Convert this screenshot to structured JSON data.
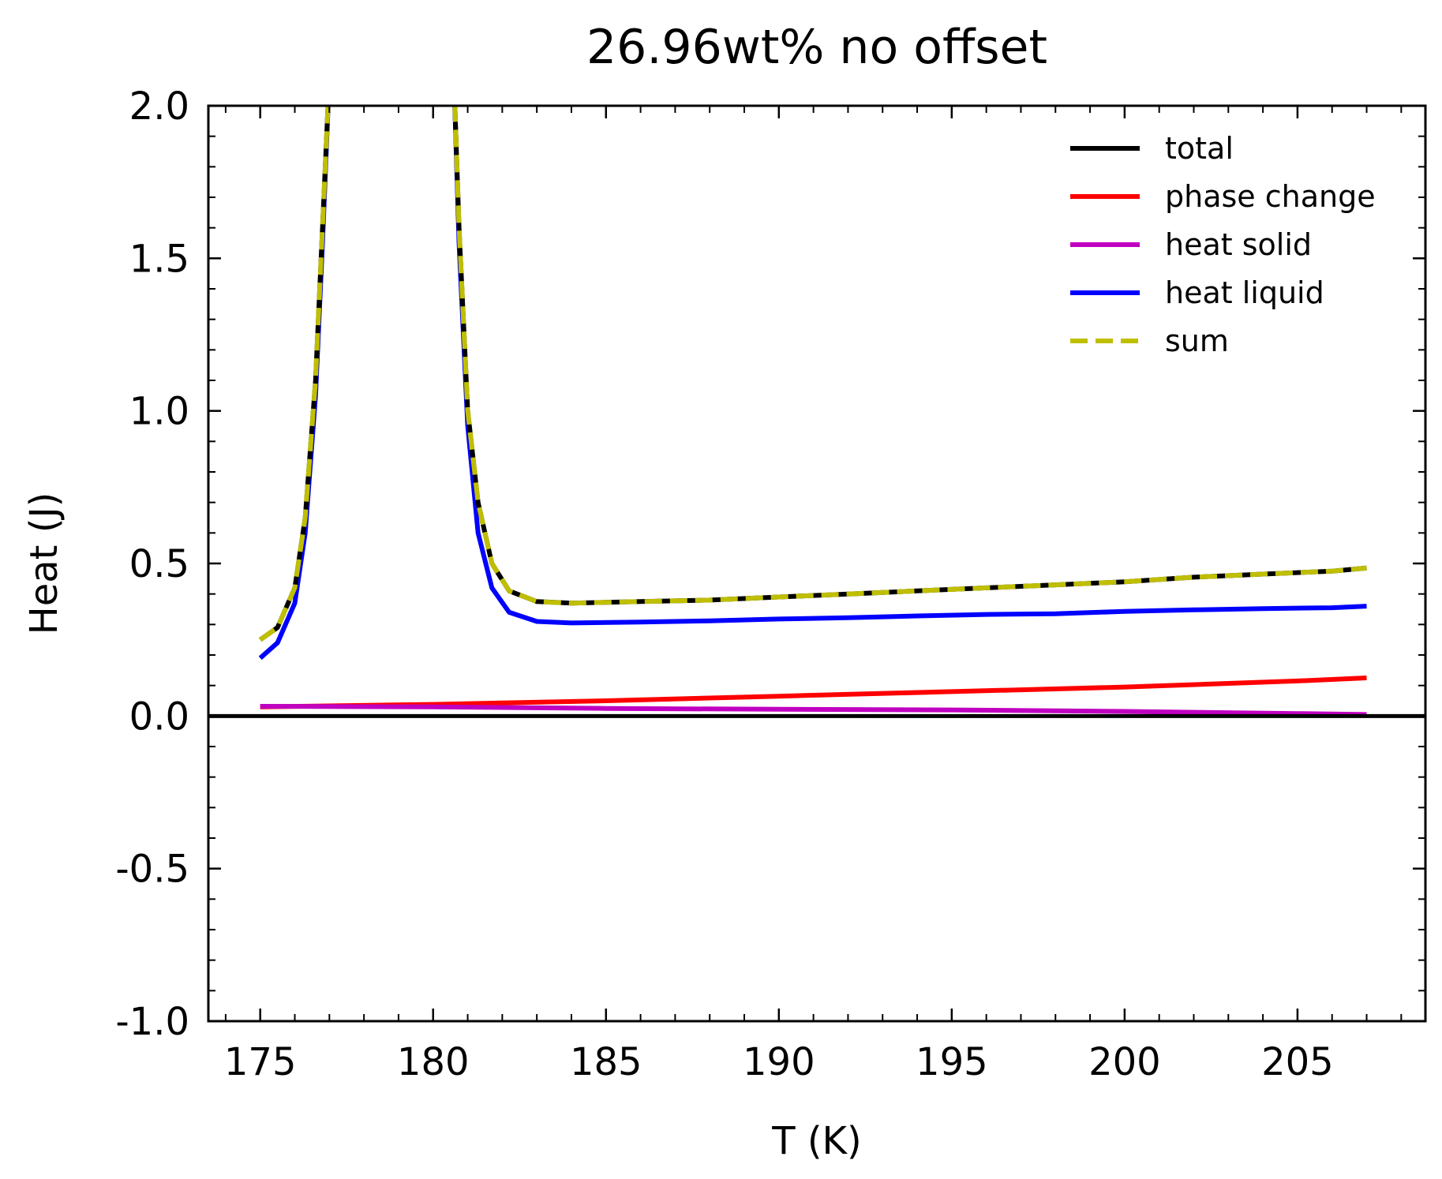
{
  "chart_data": {
    "type": "line",
    "title": "26.96wt% no offset",
    "xlabel": "T (K)",
    "ylabel": "Heat (J)",
    "xlim": [
      173.5,
      208.7
    ],
    "ylim": [
      -1.0,
      2.0
    ],
    "x_ticks": [
      175,
      180,
      185,
      190,
      195,
      200,
      205
    ],
    "x_tick_labels": [
      "175",
      "180",
      "185",
      "190",
      "195",
      "200",
      "205"
    ],
    "y_ticks": [
      -1.0,
      -0.5,
      0.0,
      0.5,
      1.0,
      1.5,
      2.0
    ],
    "y_tick_labels": [
      "-1.0",
      "-0.5",
      "0.0",
      "0.5",
      "1.0",
      "1.5",
      "2.0"
    ],
    "legend_position": "top-right",
    "series": [
      {
        "name": "total",
        "color": "#000000",
        "style": "solid",
        "points": [
          [
            175.0,
            0.25
          ],
          [
            175.5,
            0.29
          ],
          [
            176.0,
            0.42
          ],
          [
            176.3,
            0.65
          ],
          [
            176.6,
            1.1
          ],
          [
            176.8,
            1.6
          ],
          [
            177.0,
            2.1
          ],
          [
            180.6,
            2.1
          ],
          [
            180.75,
            1.6
          ],
          [
            181.0,
            1.0
          ],
          [
            181.3,
            0.7
          ],
          [
            181.7,
            0.5
          ],
          [
            182.2,
            0.41
          ],
          [
            183.0,
            0.375
          ],
          [
            184.0,
            0.37
          ],
          [
            186.0,
            0.375
          ],
          [
            188.0,
            0.38
          ],
          [
            190.0,
            0.39
          ],
          [
            192.0,
            0.4
          ],
          [
            194.0,
            0.41
          ],
          [
            196.0,
            0.42
          ],
          [
            198.0,
            0.43
          ],
          [
            200.0,
            0.44
          ],
          [
            202.0,
            0.455
          ],
          [
            204.0,
            0.465
          ],
          [
            206.0,
            0.475
          ],
          [
            207.0,
            0.485
          ]
        ]
      },
      {
        "name": "phase change",
        "color": "#ff0000",
        "style": "solid",
        "points": [
          [
            175.0,
            0.03
          ],
          [
            180.0,
            0.038
          ],
          [
            185.0,
            0.05
          ],
          [
            190.0,
            0.065
          ],
          [
            195.0,
            0.08
          ],
          [
            200.0,
            0.095
          ],
          [
            205.0,
            0.115
          ],
          [
            207.0,
            0.125
          ]
        ]
      },
      {
        "name": "heat solid",
        "color": "#c000c0",
        "style": "solid",
        "points": [
          [
            175.0,
            0.032
          ],
          [
            180.0,
            0.03
          ],
          [
            185.0,
            0.025
          ],
          [
            190.0,
            0.022
          ],
          [
            195.0,
            0.02
          ],
          [
            200.0,
            0.015
          ],
          [
            205.0,
            0.008
          ],
          [
            207.0,
            0.005
          ]
        ]
      },
      {
        "name": "heat liquid",
        "color": "#0000ff",
        "style": "solid",
        "points": [
          [
            175.0,
            0.19
          ],
          [
            175.5,
            0.24
          ],
          [
            176.0,
            0.37
          ],
          [
            176.3,
            0.6
          ],
          [
            176.6,
            1.05
          ],
          [
            176.8,
            1.55
          ],
          [
            177.0,
            2.1
          ],
          [
            180.6,
            2.1
          ],
          [
            180.75,
            1.55
          ],
          [
            181.0,
            0.95
          ],
          [
            181.3,
            0.6
          ],
          [
            181.7,
            0.42
          ],
          [
            182.2,
            0.34
          ],
          [
            183.0,
            0.31
          ],
          [
            184.0,
            0.305
          ],
          [
            186.0,
            0.308
          ],
          [
            188.0,
            0.312
          ],
          [
            190.0,
            0.318
          ],
          [
            192.0,
            0.322
          ],
          [
            194.0,
            0.328
          ],
          [
            196.0,
            0.333
          ],
          [
            198.0,
            0.335
          ],
          [
            200.0,
            0.343
          ],
          [
            202.0,
            0.348
          ],
          [
            204.0,
            0.352
          ],
          [
            206.0,
            0.355
          ],
          [
            207.0,
            0.36
          ]
        ]
      },
      {
        "name": "sum",
        "color": "#bfbf00",
        "style": "dashed",
        "points": [
          [
            175.0,
            0.25
          ],
          [
            175.5,
            0.29
          ],
          [
            176.0,
            0.42
          ],
          [
            176.3,
            0.65
          ],
          [
            176.6,
            1.1
          ],
          [
            176.8,
            1.6
          ],
          [
            177.0,
            2.1
          ],
          [
            180.6,
            2.1
          ],
          [
            180.75,
            1.6
          ],
          [
            181.0,
            1.0
          ],
          [
            181.3,
            0.7
          ],
          [
            181.7,
            0.5
          ],
          [
            182.2,
            0.41
          ],
          [
            183.0,
            0.375
          ],
          [
            184.0,
            0.37
          ],
          [
            186.0,
            0.375
          ],
          [
            188.0,
            0.38
          ],
          [
            190.0,
            0.39
          ],
          [
            192.0,
            0.4
          ],
          [
            194.0,
            0.41
          ],
          [
            196.0,
            0.42
          ],
          [
            198.0,
            0.43
          ],
          [
            200.0,
            0.44
          ],
          [
            202.0,
            0.455
          ],
          [
            204.0,
            0.465
          ],
          [
            206.0,
            0.475
          ],
          [
            207.0,
            0.485
          ]
        ]
      }
    ],
    "hline": {
      "y": 0.0,
      "color": "#000000"
    }
  }
}
